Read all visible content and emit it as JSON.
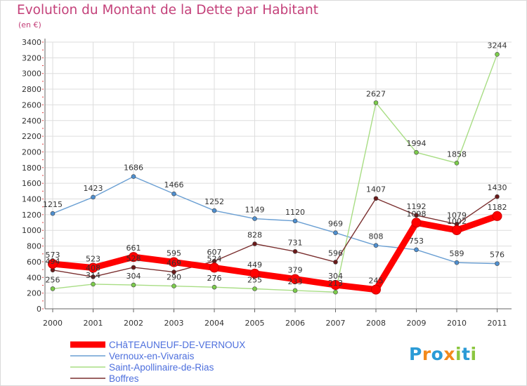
{
  "header": {
    "title": "Evolution du Montant de la Dette par Habitant",
    "subtitle": "(en €)"
  },
  "logo": {
    "text": "Proxiti"
  },
  "colors": {
    "title": "#c4417a",
    "legend_text": "#4d6fdd",
    "grid": "#dddddd"
  },
  "chart_data": {
    "type": "line",
    "title": "Evolution du Montant de la Dette par Habitant",
    "subtitle": "(en €)",
    "xlabel": "",
    "ylabel": "",
    "categories": [
      "2000",
      "2001",
      "2002",
      "2003",
      "2004",
      "2005",
      "2006",
      "2007",
      "2008",
      "2009",
      "2010",
      "2011"
    ],
    "ylim": [
      0,
      3400
    ],
    "yticks": [
      0,
      200,
      400,
      600,
      800,
      1000,
      1200,
      1400,
      1600,
      1800,
      2000,
      2200,
      2400,
      2600,
      2800,
      3000,
      3200,
      3400
    ],
    "grid": true,
    "legend_position": "bottom-left",
    "series": [
      {
        "name": "Vernoux-en-Vivarais",
        "color": "#6a9fd3",
        "marker": "#4f8fcf",
        "values": [
          1215,
          1423,
          1686,
          1466,
          1252,
          1149,
          1120,
          969,
          808,
          753,
          589,
          576
        ],
        "labels": [
          "1215",
          "1423",
          "1686",
          "1466",
          "1252",
          "1149",
          "1120",
          "969",
          "808",
          "753",
          "589",
          "576"
        ]
      },
      {
        "name": "Saint-Apollinaire-de-Rias",
        "color": "#a8dd84",
        "marker": "#7ccc4b",
        "values": [
          256,
          314,
          304,
          290,
          276,
          255,
          233,
          213,
          2627,
          1994,
          1858,
          3244
        ],
        "labels": [
          "256",
          "314",
          "304",
          "290",
          "276",
          "255",
          "233",
          "213",
          "2627",
          "1994",
          "1858",
          "3244"
        ]
      },
      {
        "name": "Boffres",
        "color": "#7a2f2f",
        "marker": "#6a1a1a",
        "values": [
          494,
          408,
          528,
          469,
          607,
          828,
          731,
          596,
          1407,
          1192,
          1079,
          1430
        ],
        "labels": [
          "494",
          "408",
          "528",
          "469",
          "607",
          "828",
          "731",
          "596",
          "1407",
          "1192",
          "1079",
          "1430"
        ]
      },
      {
        "name": "CHâTEAUNEUF-DE-VERNOUX",
        "color": "#ff0000",
        "marker": "#ff0000",
        "values": [
          573,
          523,
          661,
          595,
          524,
          449,
          379,
          304,
          245,
          1098,
          1002,
          1182
        ],
        "labels": [
          "573",
          "523",
          "661",
          "595",
          "524",
          "449",
          "379",
          "304",
          "245",
          "1098",
          "1002",
          "1182"
        ]
      }
    ],
    "legend": [
      "CHâTEAUNEUF-DE-VERNOUX",
      "Vernoux-en-Vivarais",
      "Saint-Apollinaire-de-Rias",
      "Boffres"
    ]
  }
}
